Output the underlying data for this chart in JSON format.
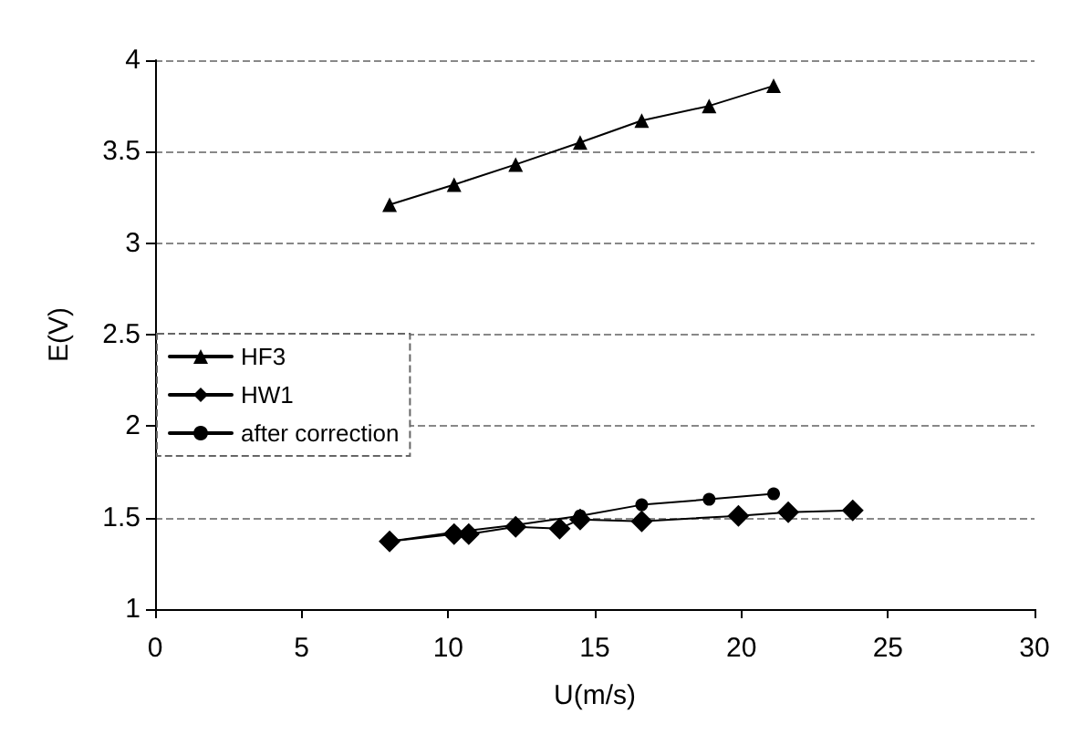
{
  "chart_data": {
    "type": "line",
    "xlabel": "U(m/s)",
    "ylabel": "E(V)",
    "xlim": [
      0,
      30
    ],
    "xticks": [
      0,
      5,
      10,
      15,
      20,
      25,
      30
    ],
    "ylim": [
      1,
      4
    ],
    "yticks": [
      1,
      1.5,
      2,
      2.5,
      3,
      3.5,
      4
    ],
    "grid": "y",
    "legend": "left",
    "series": [
      {
        "name": "HF3",
        "color": "#000000",
        "marker": "triangle",
        "x": [
          8,
          10.2,
          12.3,
          14.5,
          16.6,
          18.9,
          21.1
        ],
        "values": [
          3.21,
          3.32,
          3.43,
          3.55,
          3.67,
          3.75,
          3.86
        ]
      },
      {
        "name": "HW1",
        "color": "#000000",
        "marker": "diamond",
        "x": [
          8,
          10.2,
          10.7,
          12.3,
          13.8,
          14.5,
          16.6,
          19.9,
          21.6,
          23.8
        ],
        "values": [
          1.37,
          1.41,
          1.41,
          1.45,
          1.44,
          1.49,
          1.48,
          1.51,
          1.53,
          1.54
        ]
      },
      {
        "name": "after correction",
        "color": "#000000",
        "marker": "circle",
        "x": [
          8,
          10.2,
          12.3,
          14.5,
          16.6,
          18.9,
          21.1
        ],
        "values": [
          1.37,
          1.42,
          1.46,
          1.51,
          1.57,
          1.6,
          1.63
        ]
      }
    ]
  }
}
